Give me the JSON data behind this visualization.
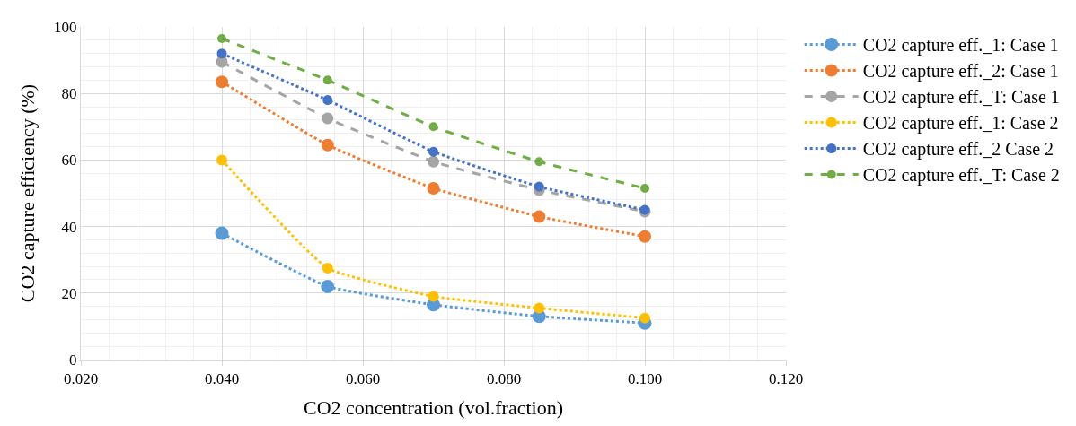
{
  "chart_data": {
    "type": "line",
    "xlabel": "CO2 concentration (vol.fraction)",
    "ylabel": "CO2 capture efficiency (%)",
    "x": [
      0.04,
      0.055,
      0.07,
      0.085,
      0.1
    ],
    "xlim": [
      0.02,
      0.12
    ],
    "xticks": [
      {
        "value": 0.02,
        "label": "0.020"
      },
      {
        "value": 0.04,
        "label": "0.040"
      },
      {
        "value": 0.06,
        "label": "0.060"
      },
      {
        "value": 0.08,
        "label": "0.080"
      },
      {
        "value": 0.1,
        "label": "0.100"
      },
      {
        "value": 0.12,
        "label": "0.120"
      }
    ],
    "ylim": [
      0,
      100
    ],
    "yticks": [
      0,
      20,
      40,
      60,
      80,
      100
    ],
    "grid": true,
    "legend": "right",
    "marker": "circle",
    "series": [
      {
        "name": "CO2 capture eff._1: Case 1",
        "color": "#5b9bd5",
        "line_style": "dotted",
        "values": [
          38,
          22,
          16.5,
          13,
          11
        ]
      },
      {
        "name": "CO2 capture eff._2: Case 1",
        "color": "#ed7d31",
        "line_style": "dotted",
        "values": [
          83.5,
          64.5,
          51.5,
          43,
          37
        ]
      },
      {
        "name": "CO2 capture eff._T: Case 1",
        "color": "#a5a5a5",
        "line_style": "dashed",
        "values": [
          89.5,
          72.5,
          59.5,
          51,
          44.5
        ]
      },
      {
        "name": "CO2 capture eff._1: Case 2",
        "color": "#ffc000",
        "line_style": "dotted",
        "values": [
          60,
          27.5,
          19,
          15.5,
          12.5
        ]
      },
      {
        "name": "CO2 capture eff._2 Case 2",
        "color": "#4472c4",
        "line_style": "dotted",
        "values": [
          92,
          78,
          62.5,
          52,
          45
        ]
      },
      {
        "name": "CO2 capture eff._T: Case 2",
        "color": "#70ad47",
        "line_style": "dashed",
        "values": [
          96.5,
          84,
          70,
          59.5,
          51.5
        ]
      }
    ]
  }
}
